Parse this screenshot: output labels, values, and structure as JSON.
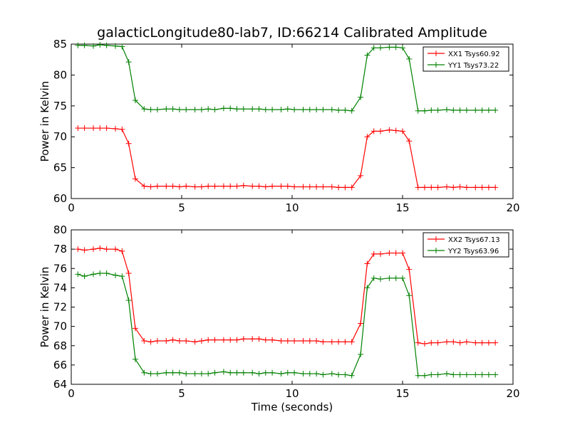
{
  "title": "galacticLongitude80-lab7, ID:66214 Calibrated Amplitude",
  "chart_data": [
    {
      "type": "line",
      "title": "galacticLongitude80-lab7, ID:66214 Calibrated Amplitude",
      "xlabel": "",
      "ylabel": "Power in Kelvin",
      "xlim": [
        0,
        20
      ],
      "ylim": [
        60,
        85
      ],
      "xticks": [
        "0",
        "5",
        "10",
        "15",
        "20"
      ],
      "yticks": [
        "60",
        "65",
        "70",
        "75",
        "80",
        "85"
      ],
      "legend_position": "top-right",
      "grid": false,
      "x": [
        0.3,
        0.6,
        1.0,
        1.3,
        1.6,
        2.0,
        2.3,
        2.6,
        2.9,
        3.3,
        3.6,
        3.9,
        4.3,
        4.6,
        4.9,
        5.2,
        5.6,
        5.9,
        6.2,
        6.5,
        6.9,
        7.2,
        7.5,
        7.8,
        8.2,
        8.5,
        8.8,
        9.1,
        9.5,
        9.8,
        10.1,
        10.5,
        10.8,
        11.1,
        11.4,
        11.8,
        12.1,
        12.4,
        12.7,
        13.1,
        13.4,
        13.7,
        14.0,
        14.4,
        14.7,
        15.0,
        15.3,
        15.7,
        16.0,
        16.3,
        16.6,
        17.0,
        17.3,
        17.6,
        17.9,
        18.3,
        18.6,
        18.9,
        19.2
      ],
      "series": [
        {
          "name": "XX1 Tsys60.92",
          "color": "#ff0000",
          "values": [
            71.4,
            71.4,
            71.4,
            71.4,
            71.4,
            71.3,
            71.2,
            68.9,
            63.2,
            62.0,
            61.9,
            62.0,
            62.0,
            62.0,
            61.9,
            62.0,
            61.9,
            61.9,
            62.0,
            62.0,
            62.0,
            62.0,
            62.0,
            62.1,
            62.0,
            62.0,
            61.9,
            62.0,
            62.0,
            62.0,
            61.9,
            61.9,
            61.9,
            61.9,
            61.9,
            61.9,
            61.8,
            61.8,
            61.8,
            63.7,
            70.0,
            70.9,
            70.9,
            71.1,
            71.0,
            70.9,
            69.3,
            61.8,
            61.8,
            61.8,
            61.8,
            61.9,
            61.8,
            61.9,
            61.8,
            61.8,
            61.8,
            61.8,
            61.8
          ]
        },
        {
          "name": "YY1 Tsys73.22",
          "color": "#008000",
          "values": [
            84.8,
            84.8,
            84.7,
            84.9,
            84.8,
            84.7,
            84.6,
            82.1,
            75.9,
            74.5,
            74.4,
            74.4,
            74.5,
            74.5,
            74.4,
            74.4,
            74.4,
            74.4,
            74.5,
            74.4,
            74.6,
            74.6,
            74.5,
            74.5,
            74.5,
            74.5,
            74.4,
            74.4,
            74.4,
            74.5,
            74.4,
            74.4,
            74.4,
            74.4,
            74.4,
            74.4,
            74.3,
            74.3,
            74.2,
            76.4,
            83.2,
            84.4,
            84.4,
            84.5,
            84.5,
            84.4,
            82.6,
            74.2,
            74.2,
            74.3,
            74.3,
            74.4,
            74.3,
            74.3,
            74.3,
            74.3,
            74.3,
            74.3,
            74.3
          ]
        }
      ]
    },
    {
      "type": "line",
      "title": "",
      "xlabel": "Time (seconds)",
      "ylabel": "Power in Kelvin",
      "xlim": [
        0,
        20
      ],
      "ylim": [
        64,
        80
      ],
      "xticks": [
        "0",
        "5",
        "10",
        "15",
        "20"
      ],
      "yticks": [
        "64",
        "66",
        "68",
        "70",
        "72",
        "74",
        "76",
        "78",
        "80"
      ],
      "legend_position": "top-right",
      "grid": false,
      "x": [
        0.3,
        0.6,
        1.0,
        1.3,
        1.6,
        2.0,
        2.3,
        2.6,
        2.9,
        3.3,
        3.6,
        3.9,
        4.3,
        4.6,
        4.9,
        5.2,
        5.6,
        5.9,
        6.2,
        6.5,
        6.9,
        7.2,
        7.5,
        7.8,
        8.2,
        8.5,
        8.8,
        9.1,
        9.5,
        9.8,
        10.1,
        10.5,
        10.8,
        11.1,
        11.4,
        11.8,
        12.1,
        12.4,
        12.7,
        13.1,
        13.4,
        13.7,
        14.0,
        14.4,
        14.7,
        15.0,
        15.3,
        15.7,
        16.0,
        16.3,
        16.6,
        17.0,
        17.3,
        17.6,
        17.9,
        18.3,
        18.6,
        18.9,
        19.2
      ],
      "series": [
        {
          "name": "XX2 Tsys67.13",
          "color": "#ff0000",
          "values": [
            78.0,
            77.9,
            78.0,
            78.1,
            78.0,
            78.0,
            77.8,
            75.5,
            69.8,
            68.5,
            68.4,
            68.5,
            68.5,
            68.6,
            68.5,
            68.5,
            68.4,
            68.5,
            68.6,
            68.6,
            68.6,
            68.6,
            68.6,
            68.7,
            68.7,
            68.7,
            68.6,
            68.6,
            68.5,
            68.5,
            68.5,
            68.5,
            68.5,
            68.5,
            68.4,
            68.4,
            68.4,
            68.4,
            68.4,
            70.3,
            76.5,
            77.5,
            77.5,
            77.6,
            77.6,
            77.6,
            75.9,
            68.3,
            68.2,
            68.3,
            68.3,
            68.4,
            68.4,
            68.3,
            68.4,
            68.3,
            68.3,
            68.3,
            68.3
          ]
        },
        {
          "name": "YY2 Tsys63.96",
          "color": "#008000",
          "values": [
            75.4,
            75.2,
            75.4,
            75.5,
            75.5,
            75.3,
            75.2,
            72.7,
            66.6,
            65.2,
            65.1,
            65.1,
            65.2,
            65.2,
            65.2,
            65.1,
            65.1,
            65.1,
            65.1,
            65.2,
            65.3,
            65.2,
            65.2,
            65.2,
            65.2,
            65.1,
            65.2,
            65.2,
            65.1,
            65.2,
            65.2,
            65.1,
            65.1,
            65.1,
            65.0,
            65.1,
            65.0,
            65.0,
            64.9,
            67.1,
            74.0,
            75.0,
            74.9,
            75.0,
            75.0,
            75.0,
            73.2,
            64.9,
            64.9,
            65.0,
            65.0,
            65.1,
            65.0,
            65.0,
            65.0,
            65.0,
            65.0,
            65.0,
            65.0
          ]
        }
      ]
    }
  ]
}
